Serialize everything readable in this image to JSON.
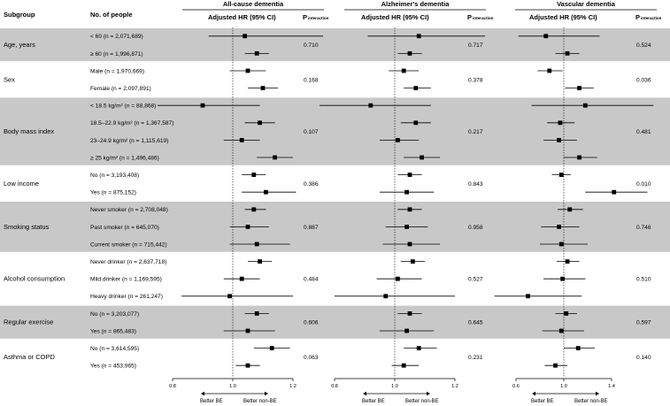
{
  "headers": {
    "subgroup": "Subgroup",
    "people": "No. of people",
    "hr": "Adjusted HR (95% CI)",
    "p_main": "P",
    "p_sub": "interaction"
  },
  "colors": {
    "band": "#c8c8c8",
    "text": "#000000"
  },
  "chart_data": {
    "type": "forest",
    "panels": [
      {
        "title": "All-cause dementia",
        "ticks": [
          0.8,
          1.0,
          1.2
        ],
        "tick_labels": [
          "0.8",
          "1.0",
          "1.2"
        ],
        "xlim": [
          0.75,
          1.3
        ],
        "favors": [
          "Better BE",
          "Better non-BE"
        ],
        "p": [
          "0.710",
          "0.168",
          "0.107",
          "0.386",
          "0.887",
          "0.484",
          "0.606",
          "0.063"
        ],
        "est": [
          [
            1.04,
            0.92,
            1.3
          ],
          [
            1.08,
            1.04,
            1.12
          ],
          [
            1.05,
            0.99,
            1.11
          ],
          [
            1.1,
            1.05,
            1.15
          ],
          [
            0.9,
            0.75,
            1.09
          ],
          [
            1.09,
            1.04,
            1.14
          ],
          [
            1.03,
            0.97,
            1.09
          ],
          [
            1.14,
            1.08,
            1.2
          ],
          [
            1.07,
            1.03,
            1.11
          ],
          [
            1.11,
            1.03,
            1.21
          ],
          [
            1.07,
            1.04,
            1.11
          ],
          [
            1.05,
            0.99,
            1.12
          ],
          [
            1.08,
            0.99,
            1.19
          ],
          [
            1.09,
            1.05,
            1.13
          ],
          [
            1.03,
            0.97,
            1.09
          ],
          [
            0.99,
            0.83,
            1.2
          ],
          [
            1.08,
            1.04,
            1.12
          ],
          [
            1.05,
            0.97,
            1.14
          ],
          [
            1.13,
            1.07,
            1.19
          ],
          [
            1.05,
            1.01,
            1.09
          ]
        ]
      },
      {
        "title": "Alzheimer's dementia",
        "ticks": [
          0.8,
          1.0,
          1.2
        ],
        "tick_labels": [
          "0.8",
          "1.0",
          "1.2"
        ],
        "xlim": [
          0.75,
          1.3
        ],
        "favors": [
          "Better BE",
          "Better non-BE"
        ],
        "p": [
          "0.717",
          "0.378",
          "0.217",
          "0.843",
          "0.958",
          "0.527",
          "0.645",
          "0.231"
        ],
        "est": [
          [
            1.08,
            0.91,
            1.3
          ],
          [
            1.05,
            1.01,
            1.09
          ],
          [
            1.03,
            0.98,
            1.08
          ],
          [
            1.07,
            1.03,
            1.12
          ],
          [
            0.92,
            0.75,
            1.12
          ],
          [
            1.07,
            1.02,
            1.12
          ],
          [
            1.01,
            0.95,
            1.08
          ],
          [
            1.09,
            1.03,
            1.15
          ],
          [
            1.05,
            1.01,
            1.09
          ],
          [
            1.04,
            0.95,
            1.13
          ],
          [
            1.05,
            1.01,
            1.09
          ],
          [
            1.04,
            0.97,
            1.11
          ],
          [
            1.05,
            0.96,
            1.15
          ],
          [
            1.06,
            1.02,
            1.1
          ],
          [
            1.01,
            0.94,
            1.09
          ],
          [
            0.97,
            0.8,
            1.2
          ],
          [
            1.05,
            1.01,
            1.09
          ],
          [
            1.04,
            0.95,
            1.13
          ],
          [
            1.08,
            1.03,
            1.14
          ],
          [
            1.03,
            0.99,
            1.08
          ]
        ]
      },
      {
        "title": "Vascular dementia",
        "ticks": [
          0.6,
          1.0,
          1.4
        ],
        "tick_labels": [
          "0.6",
          "1.0",
          "1.4"
        ],
        "xlim": [
          0.4,
          1.8
        ],
        "favors": [
          "Better BE",
          "Better non-BE"
        ],
        "p": [
          "0.524",
          "0.036",
          "0.481",
          "0.010",
          "0.746",
          "0.510",
          "0.597",
          "0.140"
        ],
        "est": [
          [
            0.85,
            0.62,
            1.3
          ],
          [
            1.03,
            0.93,
            1.13
          ],
          [
            0.88,
            0.78,
            0.99
          ],
          [
            1.13,
            1.01,
            1.25
          ],
          [
            1.18,
            0.73,
            1.75
          ],
          [
            0.97,
            0.86,
            1.09
          ],
          [
            0.96,
            0.83,
            1.11
          ],
          [
            1.13,
            1.0,
            1.28
          ],
          [
            0.98,
            0.9,
            1.06
          ],
          [
            1.42,
            1.18,
            1.7
          ],
          [
            1.05,
            0.95,
            1.16
          ],
          [
            0.96,
            0.81,
            1.13
          ],
          [
            0.98,
            0.8,
            1.2
          ],
          [
            1.03,
            0.94,
            1.13
          ],
          [
            0.99,
            0.83,
            1.18
          ],
          [
            0.7,
            0.42,
            1.15
          ],
          [
            1.02,
            0.93,
            1.11
          ],
          [
            0.98,
            0.82,
            1.17
          ],
          [
            1.12,
            1.0,
            1.26
          ],
          [
            0.93,
            0.84,
            1.03
          ]
        ]
      }
    ],
    "groups": [
      {
        "name": "Age, years",
        "shaded": true,
        "rows": [
          "< 60 (n = 2,071,689)",
          "≥ 60 (n = 1,996,871)"
        ]
      },
      {
        "name": "Sex",
        "shaded": false,
        "rows": [
          "Male (n = 1,970,669)",
          "Female (n = 2,097,891)"
        ]
      },
      {
        "name": "Body mass index",
        "shaded": true,
        "rows": [
          "< 18.5 kg/m² (n = 88,868)",
          "18.5–22.9 kg/m² (n = 1,367,587)",
          "23–24.9 kg/m² (n = 1,115,619)",
          "≥ 25 kg/m² (n = 1,496,486)"
        ]
      },
      {
        "name": "Low income",
        "shaded": false,
        "rows": [
          "No (n = 3,193,408)",
          "Yes (n = 875,152)"
        ]
      },
      {
        "name": "Smoking status",
        "shaded": true,
        "rows": [
          "Never smoker (n = 2,708,048)",
          "Past smoker (n = 645,070)",
          "Current smoker (n = 715,442)"
        ]
      },
      {
        "name": "Alcohol consumption",
        "shaded": false,
        "rows": [
          "Never drinker (n = 2,637,718)",
          "Mild drinker (n = 1,169,595)",
          "Heavy drinker (n = 261,247)"
        ]
      },
      {
        "name": "Regular exercise",
        "shaded": true,
        "rows": [
          "No (n = 3,203,077)",
          "Yes (n = 865,483)"
        ]
      },
      {
        "name": "Asthma or COPD",
        "shaded": false,
        "rows": [
          "No (n = 3,614,595)",
          "Yes (n = 453,965)"
        ]
      }
    ]
  }
}
